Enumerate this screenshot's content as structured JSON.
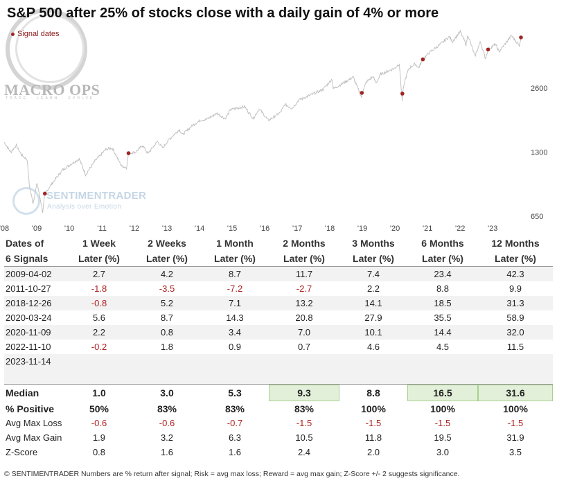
{
  "chart_data": {
    "type": "line",
    "title": "S&P 500 after 25% of stocks close with a daily gain of 4% or more",
    "legend": "Signal dates",
    "y_scale": "log",
    "ylim": [
      650,
      5000
    ],
    "y_ticks": [
      650,
      1300,
      2600
    ],
    "y_tick_labels": [
      "650",
      "1300",
      "2600"
    ],
    "xlim": [
      "2008-01-01",
      "2023-12-31"
    ],
    "x_tick_labels": [
      "'08",
      "'09",
      "'10",
      "'11",
      "'12",
      "'13",
      "'14",
      "'15",
      "'16",
      "'17",
      "'18",
      "'19",
      "'20",
      "'21",
      "'22",
      "'23"
    ],
    "series": [
      {
        "x": [
          "2008-01-01",
          "2008-03-15",
          "2008-05-15",
          "2008-07-15",
          "2008-09-15",
          "2008-10-10",
          "2008-11-20",
          "2009-01-05",
          "2009-03-09",
          "2009-04-02",
          "2009-06-15",
          "2009-10-15",
          "2010-01-15",
          "2010-04-23",
          "2010-07-02",
          "2010-10-15",
          "2011-02-15",
          "2011-04-29",
          "2011-08-08",
          "2011-10-04",
          "2011-10-27",
          "2012-01-15",
          "2012-04-01",
          "2012-06-01",
          "2012-09-15",
          "2012-11-15",
          "2013-01-15",
          "2013-05-20",
          "2013-06-24",
          "2013-10-15",
          "2014-01-15",
          "2014-03-15",
          "2014-07-15",
          "2014-10-15",
          "2014-12-15",
          "2015-05-20",
          "2015-08-25",
          "2015-11-01",
          "2016-02-11",
          "2016-06-27",
          "2016-08-15",
          "2016-11-04",
          "2017-01-15",
          "2017-06-15",
          "2017-10-15",
          "2018-01-26",
          "2018-02-08",
          "2018-05-15",
          "2018-09-20",
          "2018-12-24",
          "2018-12-26",
          "2019-02-15",
          "2019-04-30",
          "2019-06-03",
          "2019-07-26",
          "2019-12-31",
          "2020-02-19",
          "2020-03-23",
          "2020-03-24",
          "2020-04-30",
          "2020-06-08",
          "2020-08-15",
          "2020-09-23",
          "2020-11-09",
          "2021-01-15",
          "2021-06-15",
          "2021-09-02",
          "2021-10-04",
          "2022-01-03",
          "2022-03-08",
          "2022-03-29",
          "2022-06-16",
          "2022-08-16",
          "2022-10-12",
          "2022-11-10",
          "2023-02-02",
          "2023-03-13",
          "2023-07-31",
          "2023-10-27",
          "2023-11-14"
        ],
        "y": [
          1450,
          1300,
          1400,
          1260,
          1200,
          900,
          750,
          930,
          680,
          830,
          920,
          1070,
          1140,
          1210,
          1020,
          1180,
          1340,
          1360,
          1120,
          1100,
          1285,
          1300,
          1400,
          1280,
          1460,
          1360,
          1480,
          1660,
          1570,
          1740,
          1840,
          1850,
          1980,
          1870,
          2060,
          2130,
          1870,
          2080,
          1830,
          2000,
          2180,
          2090,
          2280,
          2430,
          2560,
          2870,
          2580,
          2720,
          2930,
          2350,
          2470,
          2780,
          2950,
          2740,
          3025,
          3230,
          3390,
          2240,
          2450,
          2900,
          3230,
          3380,
          3240,
          3550,
          3800,
          4250,
          4540,
          4300,
          4790,
          4170,
          4630,
          3670,
          4300,
          3580,
          3950,
          4180,
          3850,
          4590,
          4120,
          4500
        ]
      },
      {
        "name": "Signal dates",
        "type": "scatter",
        "x": [
          "2009-04-02",
          "2011-10-27",
          "2018-12-26",
          "2020-03-24",
          "2020-11-09",
          "2022-11-10",
          "2023-11-14"
        ],
        "y": [
          830,
          1285,
          2470,
          2450,
          3550,
          3950,
          4500
        ]
      }
    ]
  },
  "table": {
    "header_row1": [
      "Dates of",
      "1 Week",
      "2 Weeks",
      "1 Month",
      "2 Months",
      "3 Months",
      "6 Months",
      "12 Months"
    ],
    "header_row2": [
      "6 Signals",
      "Later (%)",
      "Later (%)",
      "Later (%)",
      "Later (%)",
      "Later (%)",
      "Later (%)",
      "Later (%)"
    ],
    "rows": [
      [
        "2009-04-02",
        "2.7",
        "4.2",
        "8.7",
        "11.7",
        "7.4",
        "23.4",
        "42.3"
      ],
      [
        "2011-10-27",
        "-1.8",
        "-3.5",
        "-7.2",
        "-2.7",
        "2.2",
        "8.8",
        "9.9"
      ],
      [
        "2018-12-26",
        "-0.8",
        "5.2",
        "7.1",
        "13.2",
        "14.1",
        "18.5",
        "31.3"
      ],
      [
        "2020-03-24",
        "5.6",
        "8.7",
        "14.3",
        "20.8",
        "27.9",
        "35.5",
        "58.9"
      ],
      [
        "2020-11-09",
        "2.2",
        "0.8",
        "3.4",
        "7.0",
        "10.1",
        "14.4",
        "32.0"
      ],
      [
        "2022-11-10",
        "-0.2",
        "1.8",
        "0.9",
        "0.7",
        "4.6",
        "4.5",
        "11.5"
      ],
      [
        "2023-11-14",
        "",
        "",
        "",
        "",
        "",
        "",
        ""
      ]
    ],
    "stats": [
      [
        "Median",
        "1.0",
        "3.0",
        "5.3",
        "9.3",
        "8.8",
        "16.5",
        "31.6"
      ],
      [
        "% Positive",
        "50%",
        "83%",
        "83%",
        "83%",
        "100%",
        "100%",
        "100%"
      ],
      [
        "Avg Max Loss",
        "-0.6",
        "-0.6",
        "-0.7",
        "-1.5",
        "-1.5",
        "-1.5",
        "-1.5"
      ],
      [
        "Avg Max Gain",
        "1.9",
        "3.2",
        "6.3",
        "10.5",
        "11.8",
        "19.5",
        "31.9"
      ],
      [
        "Z-Score",
        "0.8",
        "1.6",
        "1.6",
        "2.4",
        "2.0",
        "3.0",
        "3.5"
      ]
    ],
    "highlight_median_columns": [
      4,
      6,
      7
    ]
  },
  "branding": {
    "logo_text": "MACRO OPS",
    "logo_tagline": "TRADE · LEARN · EVOLVE",
    "watermark_title": "SENTIMENTRADER",
    "watermark_subtitle": "Analysis over Emotion"
  },
  "footnote": "© SENTIMENTRADER  Numbers are % return after signal; Risk = avg max loss; Reward = avg max gain; Z-Score +/- 2 suggests significance.",
  "colors": {
    "line": "#bdbdbd",
    "signal": "#a02525",
    "negative": "#b02020",
    "highlight_fill": "#e2f0d9",
    "highlight_border": "#a9d08e"
  }
}
